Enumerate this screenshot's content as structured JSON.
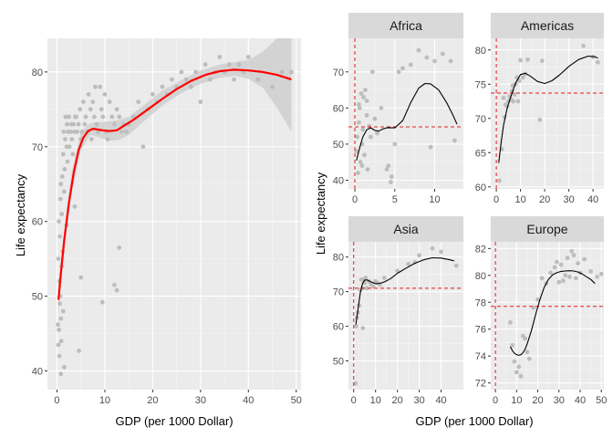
{
  "colors": {
    "panel_bg": "#ebebeb",
    "grid_major": "#ffffff",
    "strip_bg": "#d9d9d9",
    "points": "#bdbdbd",
    "band": "#cfcfcf",
    "main_line": "#ff0000",
    "facet_line": "#000000",
    "ref_line": "#e41a1c"
  },
  "chart_data": [
    {
      "type": "scatter",
      "panel": "main",
      "xlabel": "GDP (per 1000 Dollar)",
      "ylabel": "Life expectancy",
      "xlim": [
        -2,
        51
      ],
      "ylim": [
        37.5,
        84.5
      ],
      "x_ticks": [
        0,
        10,
        20,
        30,
        40,
        50
      ],
      "y_ticks": [
        40,
        50,
        60,
        70,
        80
      ],
      "smooth_line": {
        "x": [
          0.3,
          0.8,
          1.5,
          2.5,
          3.5,
          4.5,
          5.5,
          6.5,
          7.5,
          8.5,
          9.5,
          11,
          12.5,
          14,
          16,
          19,
          22,
          25,
          28,
          31,
          34,
          37,
          40,
          43,
          46,
          49
        ],
        "y": [
          49.5,
          53,
          57.5,
          62.5,
          66.5,
          69.5,
          71.2,
          72.1,
          72.4,
          72.3,
          72.2,
          72.1,
          72.2,
          72.8,
          73.6,
          75,
          76.4,
          77.7,
          78.8,
          79.6,
          80.1,
          80.3,
          80.2,
          80,
          79.6,
          79
        ]
      },
      "confidence_band": {
        "x": [
          0.3,
          1.5,
          3,
          5,
          7,
          9,
          11,
          13,
          15,
          18,
          22,
          26,
          30,
          34,
          37,
          40,
          43,
          46,
          49
        ],
        "lower": [
          47.5,
          56.3,
          63.6,
          69.5,
          71.6,
          71.2,
          70.8,
          70.9,
          71.6,
          73.3,
          75.5,
          77.2,
          78.4,
          79.2,
          79.5,
          79.1,
          77.9,
          75.2,
          72
        ],
        "upper": [
          51.5,
          58.7,
          66.4,
          72,
          73.2,
          73.3,
          73.4,
          73.6,
          74,
          75.5,
          77.5,
          78.9,
          80.2,
          81,
          81.3,
          81.6,
          82.7,
          84.5,
          86
        ]
      },
      "points": {
        "x": [
          0.2,
          0.3,
          0.3,
          0.4,
          0.4,
          0.5,
          0.5,
          0.6,
          0.6,
          0.7,
          0.7,
          0.8,
          0.8,
          0.9,
          1,
          1,
          1.1,
          1.2,
          1.3,
          1.3,
          1.4,
          1.5,
          1.6,
          1.7,
          1.8,
          2,
          2.1,
          2.2,
          2.3,
          2.5,
          2.6,
          2.8,
          3,
          3.1,
          3.3,
          3.5,
          3.6,
          3.8,
          4,
          4.2,
          4.5,
          4.8,
          5,
          5.2,
          5.5,
          5.8,
          6,
          6.3,
          6.6,
          7,
          7.2,
          7.5,
          7.8,
          8,
          8.3,
          8.6,
          9,
          9.3,
          9.6,
          10,
          10.3,
          10.6,
          11,
          11.5,
          12,
          12.5,
          13,
          13.5,
          14,
          14.5,
          15,
          16,
          17,
          18,
          19,
          20,
          21,
          22,
          23,
          24,
          25,
          26,
          27,
          28,
          29,
          30,
          31,
          32,
          33,
          34,
          35,
          36,
          37,
          38,
          39,
          40,
          42,
          45,
          47,
          49,
          12,
          12.5,
          13,
          9.5,
          5,
          4.6,
          2,
          1.5,
          0.8,
          3.7
        ],
        "y": [
          46.2,
          43.5,
          55,
          45.5,
          60,
          52,
          42,
          58,
          49,
          63,
          50,
          47,
          65,
          44,
          61,
          54,
          66,
          56,
          48,
          69,
          72,
          64,
          67,
          71,
          74,
          70,
          73,
          68,
          72,
          74,
          70,
          72,
          73,
          71,
          69,
          73,
          72,
          74,
          74,
          72,
          73,
          75,
          71,
          72,
          76,
          73,
          74,
          72,
          77,
          75,
          71,
          76,
          74,
          78,
          73,
          72,
          78,
          75,
          74,
          77,
          72,
          71,
          76,
          74,
          73,
          75,
          74,
          72,
          73,
          72,
          73,
          74,
          76,
          70,
          75,
          77,
          76,
          78,
          77,
          79,
          78,
          80,
          79,
          78,
          80,
          76,
          81,
          79,
          80,
          82,
          80,
          81,
          79,
          81,
          80,
          82,
          79,
          78,
          80,
          80,
          51.5,
          50.8,
          56.5,
          49.2,
          52.5,
          42.7,
          59.5,
          40.5,
          39.6,
          62
        ]
      }
    },
    {
      "type": "scatter",
      "panel": "facet",
      "strip": "Africa",
      "xlim": [
        -0.8,
        13.6
      ],
      "ylim": [
        37.6,
        79.3
      ],
      "x_ticks": [
        0,
        5,
        10
      ],
      "y_ticks": [
        40,
        50,
        60,
        70
      ],
      "ref_x": 0,
      "ref_y": 54.8,
      "line": {
        "x": [
          0.2,
          0.6,
          1,
          1.5,
          2,
          2.5,
          3,
          3.5,
          4,
          5,
          6,
          7,
          8,
          8.8,
          9.5,
          10.5,
          11.5,
          12.3,
          12.8
        ],
        "y": [
          45.5,
          49,
          52,
          54,
          54.5,
          53.8,
          53.6,
          54.2,
          54.5,
          54.5,
          56.5,
          61.5,
          65.5,
          66.8,
          66.7,
          65,
          61.5,
          58,
          55.5
        ]
      },
      "points": {
        "x": [
          0.2,
          0.3,
          0.4,
          0.5,
          0.6,
          0.7,
          0.8,
          0.9,
          1,
          1.1,
          1.2,
          1.3,
          1.5,
          1.6,
          1.8,
          2,
          2.2,
          2.5,
          2.8,
          3.3,
          4,
          4.5,
          5,
          5.5,
          6,
          7,
          8,
          9,
          10,
          11,
          12,
          12.5,
          0.5,
          0.9,
          1.5,
          4.2,
          4.6,
          9.5
        ],
        "y": [
          48,
          52,
          42,
          56,
          60,
          45,
          64,
          50,
          54,
          63,
          47,
          65,
          58,
          43,
          55,
          52,
          70,
          57,
          53,
          60,
          43,
          39.5,
          50,
          70,
          71,
          72,
          76,
          74,
          73,
          75,
          73,
          51,
          61,
          44,
          62,
          44,
          41,
          49.2
        ]
      }
    },
    {
      "type": "scatter",
      "panel": "facet",
      "strip": "Americas",
      "xlim": [
        -2.3,
        44.5
      ],
      "ylim": [
        59.7,
        81.7
      ],
      "x_ticks": [
        0,
        10,
        20,
        30,
        40
      ],
      "y_ticks": [
        60,
        65,
        70,
        75,
        80
      ],
      "ref_x": 0,
      "ref_y": 73.7,
      "line": {
        "x": [
          1,
          2,
          3,
          4.5,
          6,
          8,
          10,
          12,
          14,
          17,
          20,
          23,
          26,
          30,
          34,
          38,
          41,
          42
        ],
        "y": [
          63.5,
          66.5,
          69,
          71.5,
          73.2,
          75.2,
          76.4,
          76.6,
          76.2,
          75.4,
          75.1,
          75.5,
          76.3,
          77.6,
          78.6,
          79.1,
          79,
          78.8
        ]
      },
      "points": {
        "x": [
          1.2,
          2.3,
          3.4,
          3.8,
          4.5,
          5,
          5.5,
          6,
          6.5,
          7,
          7.5,
          8,
          8.5,
          9,
          9.5,
          10,
          11,
          12,
          13,
          18,
          36,
          40,
          42,
          3,
          6.8,
          19
        ],
        "y": [
          60.9,
          65.5,
          70.2,
          72,
          71.8,
          72.5,
          73.2,
          72.8,
          74,
          72.5,
          73.5,
          75,
          76,
          72.5,
          75.5,
          78.5,
          76,
          76.5,
          78.6,
          69.8,
          80.6,
          79,
          78.2,
          73,
          74.8,
          78.4
        ]
      }
    },
    {
      "type": "scatter",
      "panel": "facet",
      "strip": "Asia",
      "xlim": [
        -2.4,
        50.2
      ],
      "ylim": [
        41.7,
        84.4
      ],
      "x_ticks": [
        0,
        10,
        20,
        30,
        40
      ],
      "y_ticks": [
        50,
        60,
        70,
        80
      ],
      "ref_x": 0,
      "ref_y": 71,
      "line": {
        "x": [
          1,
          2,
          3,
          4,
          5,
          6,
          8,
          10,
          12,
          14,
          17,
          20,
          24,
          28,
          32,
          36,
          40,
          44,
          46
        ],
        "y": [
          60.5,
          65,
          69.5,
          72.3,
          73.3,
          73.4,
          72.8,
          72.3,
          72.4,
          72.8,
          73.8,
          75.3,
          76.8,
          78.2,
          79.2,
          79.8,
          79.7,
          79.2,
          78.9
        ]
      },
      "points": {
        "x": [
          0.8,
          1.1,
          1.5,
          2,
          2.5,
          3,
          3.5,
          4,
          4.5,
          5,
          5.5,
          6,
          7,
          8,
          9,
          10,
          11,
          12,
          14,
          20,
          25,
          28,
          30,
          36,
          40,
          47,
          4.2
        ],
        "y": [
          43.5,
          60,
          62.5,
          64,
          66,
          70.5,
          73.5,
          71,
          73.5,
          72.5,
          74,
          71,
          73,
          72,
          71.5,
          73,
          72.5,
          72,
          74,
          76,
          78,
          78.5,
          80.5,
          82.5,
          81.5,
          77.5,
          59.5
        ]
      }
    },
    {
      "type": "scatter",
      "panel": "facet",
      "strip": "Europe",
      "xlim": [
        -2.2,
        51.2
      ],
      "ylim": [
        71.5,
        82.5
      ],
      "x_ticks": [
        0,
        10,
        20,
        30,
        40,
        50
      ],
      "y_ticks": [
        72,
        74,
        76,
        78,
        80,
        82
      ],
      "ref_x": 0,
      "ref_y": 77.7,
      "line": {
        "x": [
          7,
          8,
          9,
          10,
          11,
          12,
          13,
          14,
          15,
          17,
          19,
          21,
          23,
          25,
          27,
          29,
          31,
          33,
          35,
          37,
          39,
          41,
          43,
          45,
          47
        ],
        "y": [
          74.7,
          74.4,
          74.2,
          74.1,
          74.05,
          74.1,
          74.25,
          74.5,
          74.9,
          75.9,
          77.1,
          78.2,
          79.1,
          79.7,
          80.05,
          80.2,
          80.3,
          80.33,
          80.35,
          80.33,
          80.25,
          80.1,
          79.9,
          79.7,
          79.4
        ]
      },
      "points": {
        "x": [
          7,
          8,
          9,
          10,
          11,
          12,
          13,
          14,
          15,
          16,
          18,
          20,
          22,
          24,
          26,
          28,
          29,
          30,
          31,
          32,
          33,
          34,
          35,
          36,
          37,
          38,
          39,
          40,
          42,
          45,
          48,
          50
        ],
        "y": [
          76.5,
          74.8,
          73.6,
          72.8,
          73.2,
          72.5,
          75.5,
          75.3,
          74.3,
          73.8,
          77.6,
          78.2,
          79.8,
          79.4,
          80.2,
          80.6,
          81,
          79.5,
          80.8,
          79.6,
          80,
          81.3,
          79.9,
          81.8,
          81.5,
          79.8,
          80.9,
          80.2,
          81.2,
          80.3,
          79.9,
          80.1
        ]
      }
    }
  ],
  "facet_shared": {
    "xlabel": "GDP (per 1000 Dollar)",
    "ylabel": "Life expectancy"
  }
}
